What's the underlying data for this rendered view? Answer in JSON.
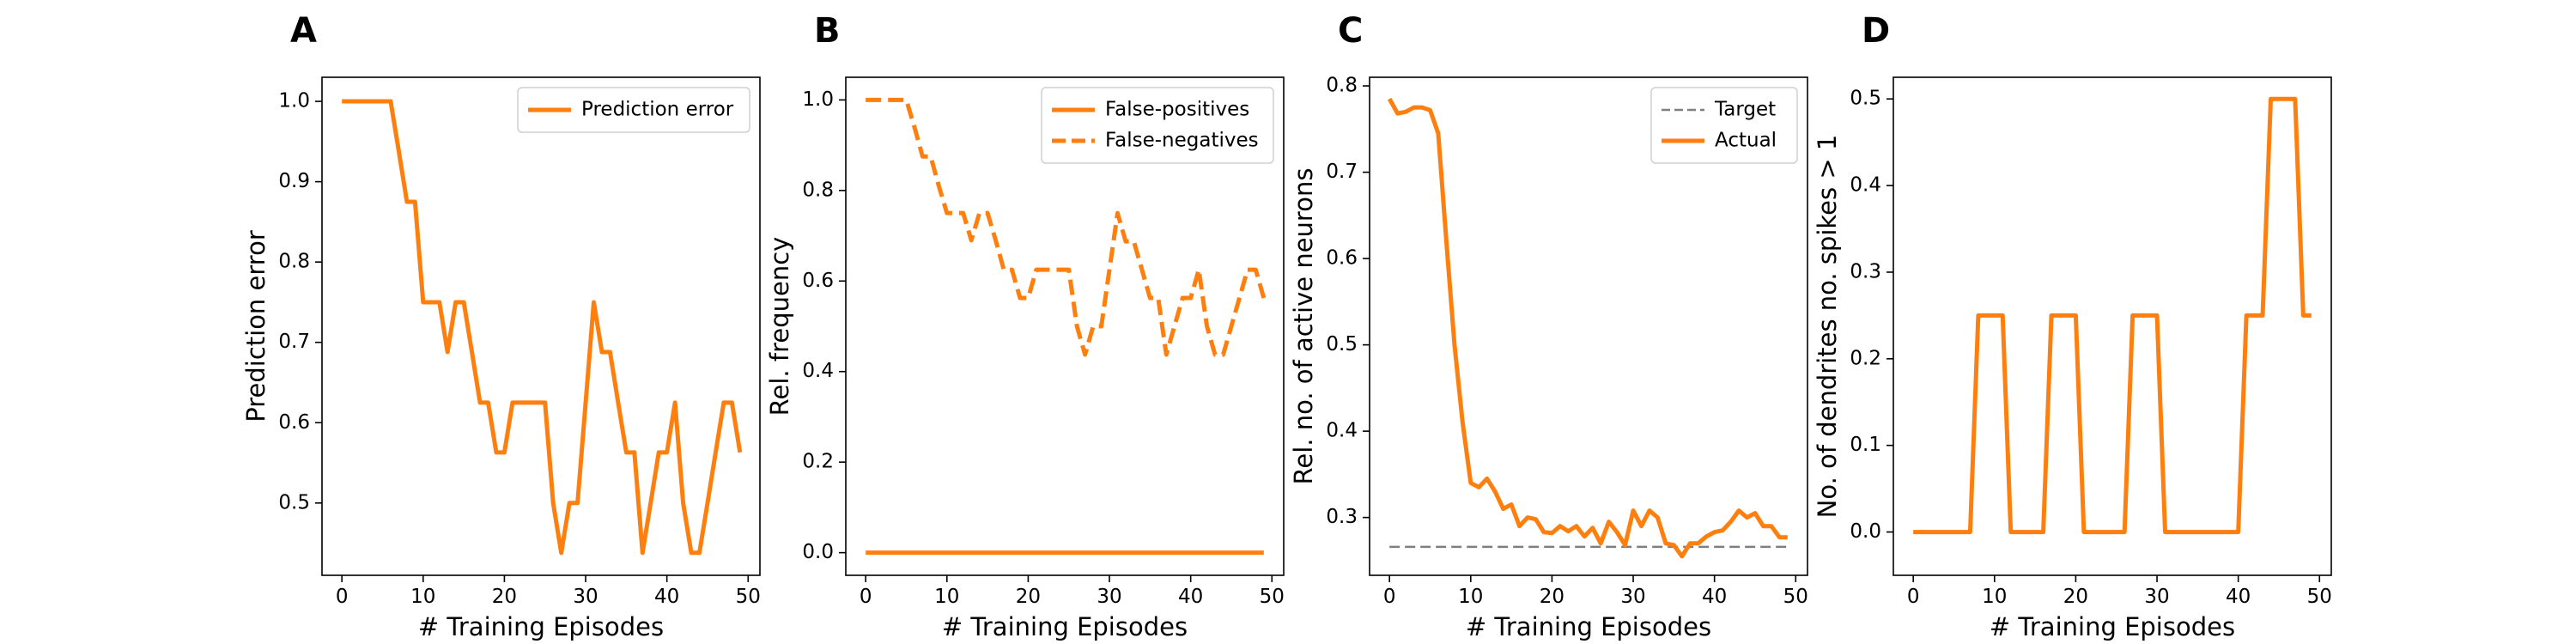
{
  "chart_data": [
    {
      "panel": "A",
      "type": "line",
      "xlabel": "# Training Episodes",
      "ylabel": "Prediction error",
      "xlim": [
        -2.45,
        51.45
      ],
      "ylim": [
        0.41,
        1.03
      ],
      "xticks": [
        0,
        10,
        20,
        30,
        40,
        50
      ],
      "yticks": [
        0.5,
        0.6,
        0.7,
        0.8,
        0.9,
        1.0
      ],
      "ytick_labels": [
        "0.5",
        "0.6",
        "0.7",
        "0.8",
        "0.9",
        "1.0"
      ],
      "legend": "top-right",
      "x": [
        0,
        1,
        2,
        3,
        4,
        5,
        6,
        7,
        8,
        9,
        10,
        11,
        12,
        13,
        14,
        15,
        16,
        17,
        18,
        19,
        20,
        21,
        22,
        23,
        24,
        25,
        26,
        27,
        28,
        29,
        30,
        31,
        32,
        33,
        34,
        35,
        36,
        37,
        38,
        39,
        40,
        41,
        42,
        43,
        44,
        45,
        46,
        47,
        48,
        49
      ],
      "series": [
        {
          "name": "Prediction error",
          "color": "#ff7f0e",
          "dash": "solid",
          "values": [
            1.0,
            1.0,
            1.0,
            1.0,
            1.0,
            1.0,
            1.0,
            0.938,
            0.875,
            0.875,
            0.75,
            0.75,
            0.75,
            0.688,
            0.75,
            0.75,
            0.688,
            0.625,
            0.625,
            0.563,
            0.563,
            0.625,
            0.625,
            0.625,
            0.625,
            0.625,
            0.5,
            0.438,
            0.5,
            0.5,
            0.625,
            0.75,
            0.688,
            0.688,
            0.625,
            0.563,
            0.563,
            0.438,
            0.5,
            0.563,
            0.563,
            0.625,
            0.5,
            0.438,
            0.438,
            0.5,
            0.563,
            0.625,
            0.625,
            0.563
          ]
        }
      ]
    },
    {
      "panel": "B",
      "type": "line",
      "xlabel": "# Training Episodes",
      "ylabel": "Rel. frequency",
      "xlim": [
        -2.45,
        51.45
      ],
      "ylim": [
        -0.05,
        1.05
      ],
      "xticks": [
        0,
        10,
        20,
        30,
        40,
        50
      ],
      "yticks": [
        0.0,
        0.2,
        0.4,
        0.6,
        0.8,
        1.0
      ],
      "ytick_labels": [
        "0.0",
        "0.2",
        "0.4",
        "0.6",
        "0.8",
        "1.0"
      ],
      "legend": "top-right",
      "x": [
        0,
        1,
        2,
        3,
        4,
        5,
        6,
        7,
        8,
        9,
        10,
        11,
        12,
        13,
        14,
        15,
        16,
        17,
        18,
        19,
        20,
        21,
        22,
        23,
        24,
        25,
        26,
        27,
        28,
        29,
        30,
        31,
        32,
        33,
        34,
        35,
        36,
        37,
        38,
        39,
        40,
        41,
        42,
        43,
        44,
        45,
        46,
        47,
        48,
        49
      ],
      "series": [
        {
          "name": "False-positives",
          "color": "#ff7f0e",
          "dash": "solid",
          "values": [
            0,
            0,
            0,
            0,
            0,
            0,
            0,
            0,
            0,
            0,
            0,
            0,
            0,
            0,
            0,
            0,
            0,
            0,
            0,
            0,
            0,
            0,
            0,
            0,
            0,
            0,
            0,
            0,
            0,
            0,
            0,
            0,
            0,
            0,
            0,
            0,
            0,
            0,
            0,
            0,
            0,
            0,
            0,
            0,
            0,
            0,
            0,
            0,
            0,
            0
          ]
        },
        {
          "name": "False-negatives",
          "color": "#ff7f0e",
          "dash": "dashed",
          "values": [
            1.0,
            1.0,
            1.0,
            1.0,
            1.0,
            1.0,
            0.94,
            0.875,
            0.875,
            0.81,
            0.75,
            0.75,
            0.75,
            0.69,
            0.75,
            0.75,
            0.69,
            0.625,
            0.625,
            0.5625,
            0.5625,
            0.625,
            0.625,
            0.625,
            0.625,
            0.625,
            0.5,
            0.4375,
            0.5,
            0.5,
            0.625,
            0.75,
            0.6875,
            0.6875,
            0.625,
            0.5625,
            0.5625,
            0.4375,
            0.5,
            0.5625,
            0.5625,
            0.625,
            0.5,
            0.4375,
            0.4375,
            0.5,
            0.5625,
            0.625,
            0.625,
            0.5625
          ]
        }
      ]
    },
    {
      "panel": "C",
      "type": "line",
      "xlabel": "# Training Episodes",
      "ylabel": "Rel. no. of active neurons",
      "xlim": [
        -2.45,
        51.45
      ],
      "ylim": [
        0.233,
        0.81
      ],
      "xticks": [
        0,
        10,
        20,
        30,
        40,
        50
      ],
      "yticks": [
        0.3,
        0.4,
        0.5,
        0.6,
        0.7,
        0.8
      ],
      "ytick_labels": [
        "0.3",
        "0.4",
        "0.5",
        "0.6",
        "0.7",
        "0.8"
      ],
      "legend": "top-right",
      "x": [
        0,
        1,
        2,
        3,
        4,
        5,
        6,
        7,
        8,
        9,
        10,
        11,
        12,
        13,
        14,
        15,
        16,
        17,
        18,
        19,
        20,
        21,
        22,
        23,
        24,
        25,
        26,
        27,
        28,
        29,
        30,
        31,
        32,
        33,
        34,
        35,
        36,
        37,
        38,
        39,
        40,
        41,
        42,
        43,
        44,
        45,
        46,
        47,
        48,
        49
      ],
      "series": [
        {
          "name": "Target",
          "color": "#7f7f7f",
          "dash": "dashed",
          "values": [
            0.266,
            0.266,
            0.266,
            0.266,
            0.266,
            0.266,
            0.266,
            0.266,
            0.266,
            0.266,
            0.266,
            0.266,
            0.266,
            0.266,
            0.266,
            0.266,
            0.266,
            0.266,
            0.266,
            0.266,
            0.266,
            0.266,
            0.266,
            0.266,
            0.266,
            0.266,
            0.266,
            0.266,
            0.266,
            0.266,
            0.266,
            0.266,
            0.266,
            0.266,
            0.266,
            0.266,
            0.266,
            0.266,
            0.266,
            0.266,
            0.266,
            0.266,
            0.266,
            0.266,
            0.266,
            0.266,
            0.266,
            0.266,
            0.266,
            0.266
          ]
        },
        {
          "name": "Actual",
          "color": "#ff7f0e",
          "dash": "solid",
          "values": [
            0.785,
            0.768,
            0.77,
            0.775,
            0.775,
            0.772,
            0.745,
            0.62,
            0.5,
            0.41,
            0.34,
            0.335,
            0.345,
            0.33,
            0.31,
            0.315,
            0.29,
            0.3,
            0.298,
            0.283,
            0.282,
            0.29,
            0.284,
            0.29,
            0.278,
            0.288,
            0.27,
            0.295,
            0.283,
            0.268,
            0.308,
            0.29,
            0.308,
            0.3,
            0.27,
            0.268,
            0.255,
            0.27,
            0.27,
            0.278,
            0.283,
            0.285,
            0.295,
            0.308,
            0.3,
            0.305,
            0.29,
            0.29,
            0.277,
            0.277
          ]
        }
      ]
    },
    {
      "panel": "D",
      "type": "line",
      "xlabel": "# Training Episodes",
      "ylabel": "No. of dendrites no. spikes > 1",
      "xlim": [
        -2.45,
        51.45
      ],
      "ylim": [
        -0.05,
        0.525
      ],
      "xticks": [
        0,
        10,
        20,
        30,
        40,
        50
      ],
      "yticks": [
        0.0,
        0.1,
        0.2,
        0.3,
        0.4,
        0.5
      ],
      "ytick_labels": [
        "0.0",
        "0.1",
        "0.2",
        "0.3",
        "0.4",
        "0.5"
      ],
      "legend": "none",
      "x": [
        0,
        1,
        2,
        3,
        4,
        5,
        6,
        7,
        8,
        9,
        10,
        11,
        12,
        13,
        14,
        15,
        16,
        17,
        18,
        19,
        20,
        21,
        22,
        23,
        24,
        25,
        26,
        27,
        28,
        29,
        30,
        31,
        32,
        33,
        34,
        35,
        36,
        37,
        38,
        39,
        40,
        41,
        42,
        43,
        44,
        45,
        46,
        47,
        48,
        49
      ],
      "series": [
        {
          "name": "",
          "color": "#ff7f0e",
          "dash": "solid",
          "values": [
            0,
            0,
            0,
            0,
            0,
            0,
            0,
            0,
            0.25,
            0.25,
            0.25,
            0.25,
            0,
            0,
            0,
            0,
            0,
            0.25,
            0.25,
            0.25,
            0.25,
            0,
            0,
            0,
            0,
            0,
            0,
            0.25,
            0.25,
            0.25,
            0.25,
            0,
            0,
            0,
            0,
            0,
            0,
            0,
            0,
            0,
            0,
            0.25,
            0.25,
            0.25,
            0.5,
            0.5,
            0.5,
            0.5,
            0.25,
            0.25
          ]
        }
      ]
    }
  ],
  "x_tick_labels": [
    "0",
    "10",
    "20",
    "30",
    "40",
    "50"
  ]
}
